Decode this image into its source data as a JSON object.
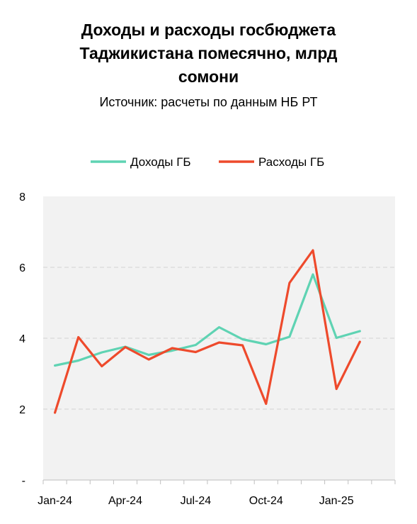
{
  "title_lines": [
    "Доходы и расходы госбюджета",
    "Таджикистана помесячно, млрд",
    "сомони"
  ],
  "subtitle": "Источник: расчеты по данным НБ РТ",
  "colors": {
    "income": "#5fd3b3",
    "expenses": "#ee4a2c",
    "plot_bg": "#f2f2f2",
    "grid": "#d9d9d9"
  },
  "chart_data": {
    "type": "line",
    "title": "Доходы и расходы госбюджета Таджикистана помесячно, млрд сомони",
    "subtitle": "Источник: расчеты по данным НБ РТ",
    "x": [
      "Jan-24",
      "Feb-24",
      "Mar-24",
      "Apr-24",
      "May-24",
      "Jun-24",
      "Jul-24",
      "Aug-24",
      "Sep-24",
      "Oct-24",
      "Nov-24",
      "Dec-24",
      "Jan-25",
      "Feb-25"
    ],
    "xticks": [
      "Jan-24",
      "Apr-24",
      "Jul-24",
      "Oct-24",
      "Jan-25"
    ],
    "yticks": [
      "-",
      "2",
      "4",
      "6",
      "8"
    ],
    "ylim": [
      0,
      8
    ],
    "grid": "horizontal dashed",
    "legend_position": "top",
    "series": [
      {
        "name": "Доходы ГБ",
        "color": "#5fd3b3",
        "values": [
          3.23,
          3.37,
          3.6,
          3.76,
          3.53,
          3.65,
          3.81,
          4.31,
          3.97,
          3.83,
          4.04,
          5.8,
          4.01,
          4.2
        ]
      },
      {
        "name": "Расходы ГБ",
        "color": "#ee4a2c",
        "values": [
          1.9,
          4.03,
          3.21,
          3.75,
          3.4,
          3.72,
          3.61,
          3.88,
          3.8,
          2.15,
          5.56,
          6.48,
          2.57,
          3.9
        ]
      }
    ]
  }
}
